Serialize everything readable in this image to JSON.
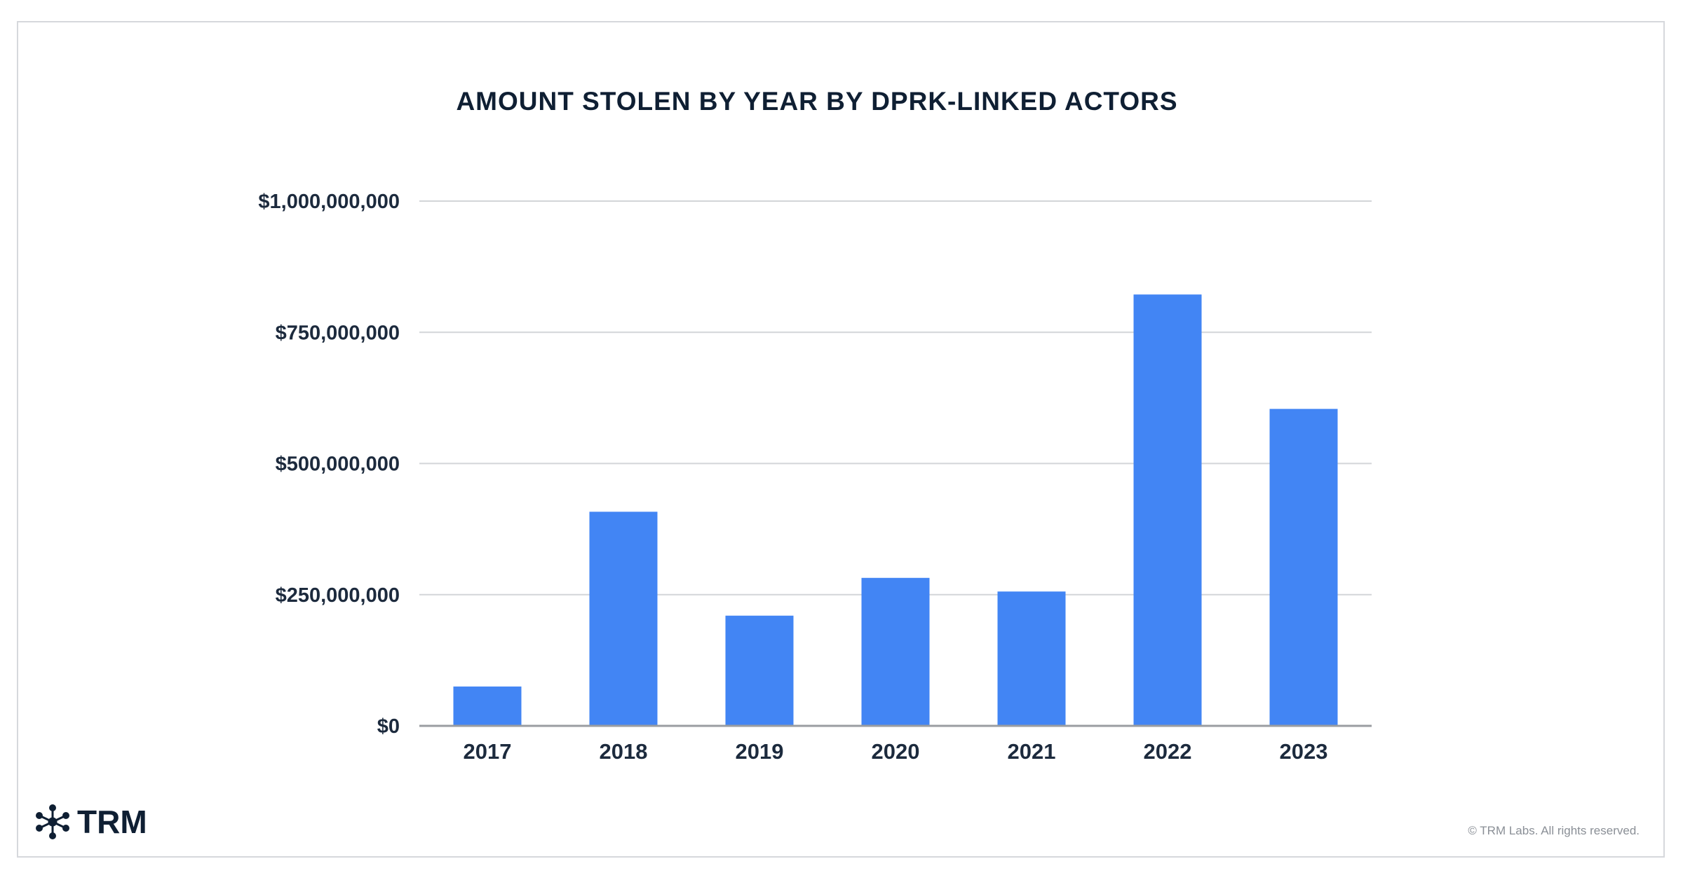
{
  "footer": {
    "logo_text": "TRM",
    "copyright": "© TRM Labs. All rights reserved."
  },
  "colors": {
    "bar": "#4285f4",
    "grid": "#d3d5d8",
    "axis": "#9a9da1",
    "text": "#1c2a3d"
  },
  "icons": {
    "logo": "network-star-icon"
  },
  "chart_data": {
    "type": "bar",
    "title": "AMOUNT STOLEN BY YEAR BY DPRK-LINKED ACTORS",
    "xlabel": "",
    "ylabel": "",
    "categories": [
      "2017",
      "2018",
      "2019",
      "2020",
      "2021",
      "2022",
      "2023"
    ],
    "values": [
      75000000,
      408000000,
      210000000,
      282000000,
      256000000,
      822000000,
      604000000
    ],
    "ylim": [
      0,
      1000000000
    ],
    "yticks": [
      0,
      250000000,
      500000000,
      750000000,
      1000000000
    ],
    "ytick_labels": [
      "$0",
      "$250,000,000",
      "$500,000,000",
      "$750,000,000",
      "$1,000,000,000"
    ],
    "grid": true,
    "legend": "none"
  }
}
